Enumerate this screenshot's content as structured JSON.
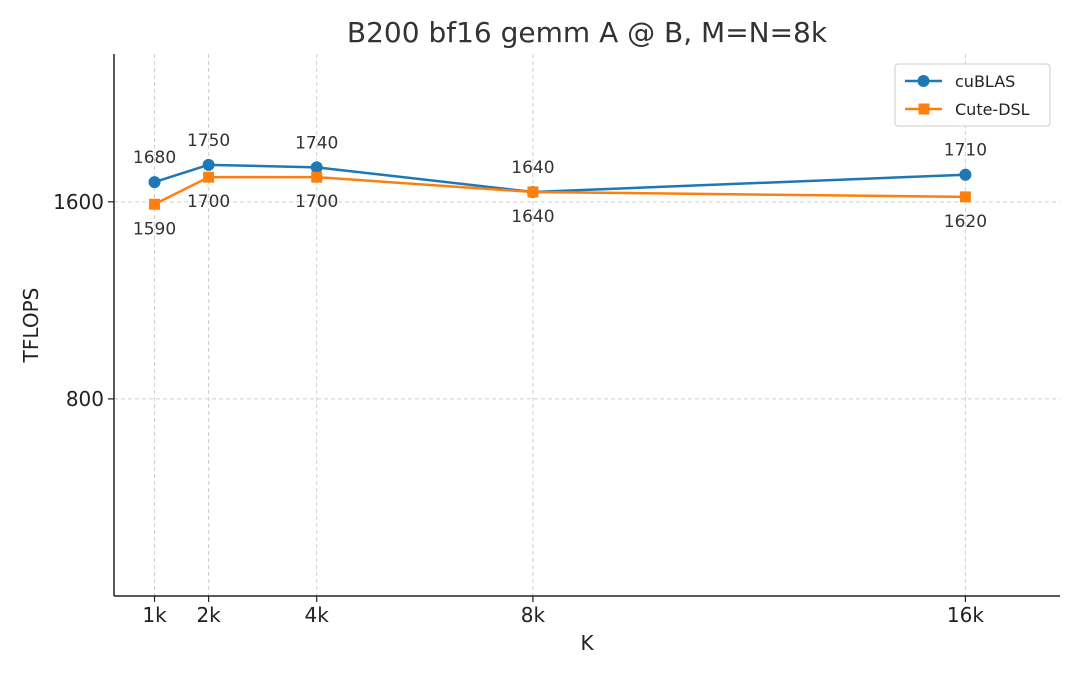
{
  "chart_data": {
    "type": "line",
    "title": "B200 bf16 gemm A @ B, M=N=8k",
    "xlabel": "K",
    "ylabel": "TFLOPS",
    "x": [
      1,
      2,
      4,
      8,
      16
    ],
    "x_tick_labels": [
      "1k",
      "2k",
      "4k",
      "8k",
      "16k"
    ],
    "y_ticks": [
      800,
      1600
    ],
    "y_tick_labels": [
      "800",
      "1600"
    ],
    "ylim": [
      0,
      2200
    ],
    "xlim": [
      0.25,
      17.75
    ],
    "grid": true,
    "legend_position": "top-right",
    "series": [
      {
        "name": "cuBLAS",
        "color": "#1f77b4",
        "marker": "circle",
        "values": [
          1680,
          1750,
          1740,
          1640,
          1710
        ],
        "labels": [
          "1680",
          "1750",
          "1740",
          "1640",
          "1710"
        ],
        "label_position": "above"
      },
      {
        "name": "Cute-DSL",
        "color": "#ff7f0e",
        "marker": "square",
        "values": [
          1590,
          1700,
          1700,
          1640,
          1620
        ],
        "labels": [
          "1590",
          "1700",
          "1700",
          "1640",
          "1620"
        ],
        "label_position": "below"
      }
    ]
  }
}
